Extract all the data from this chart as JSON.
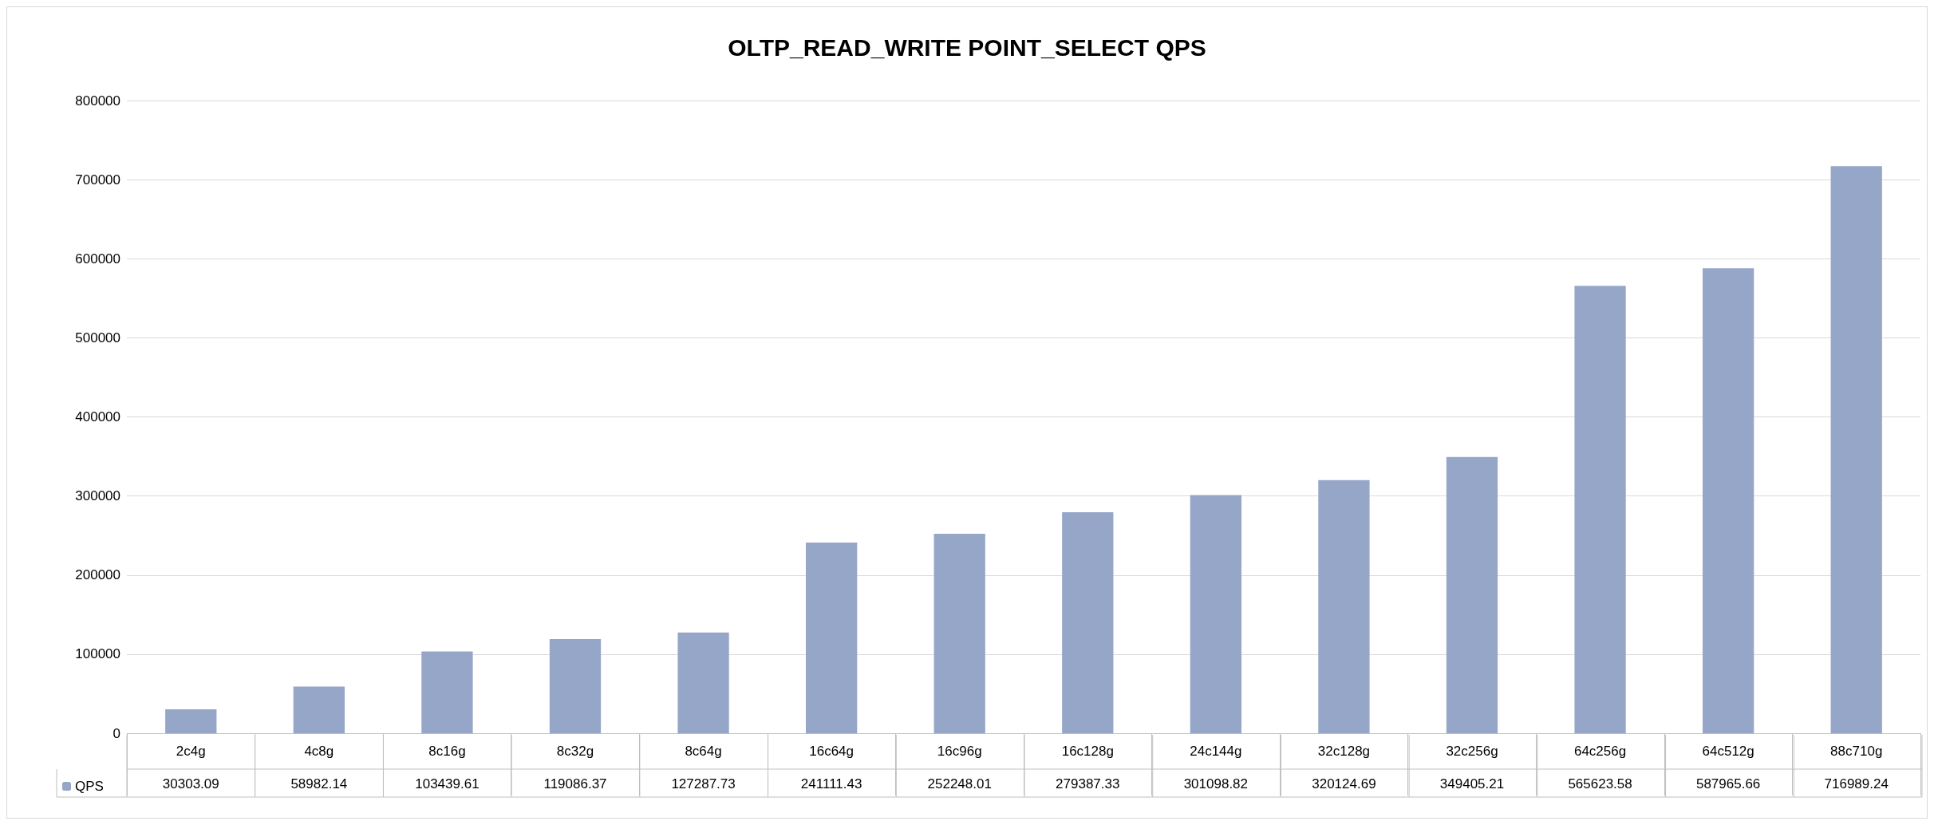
{
  "chart_data": {
    "type": "bar",
    "title": "OLTP_READ_WRITE POINT_SELECT QPS",
    "categories": [
      "2c4g",
      "4c8g",
      "8c16g",
      "8c32g",
      "8c64g",
      "16c64g",
      "16c96g",
      "16c128g",
      "24c144g",
      "32c128g",
      "32c256g",
      "64c256g",
      "64c512g",
      "88c710g"
    ],
    "series": [
      {
        "name": "QPS",
        "color": "#96a6c8",
        "values": [
          30303.09,
          58982.14,
          103439.61,
          119086.37,
          127287.73,
          241111.43,
          252248.01,
          279387.33,
          301098.82,
          320124.69,
          349405.21,
          565623.58,
          587965.66,
          716989.24
        ]
      }
    ],
    "ylim": [
      0,
      800000
    ],
    "yticks": [
      0,
      100000,
      200000,
      300000,
      400000,
      500000,
      600000,
      700000,
      800000
    ],
    "grid": "y",
    "legend": "bottom left",
    "data_labels": true
  }
}
